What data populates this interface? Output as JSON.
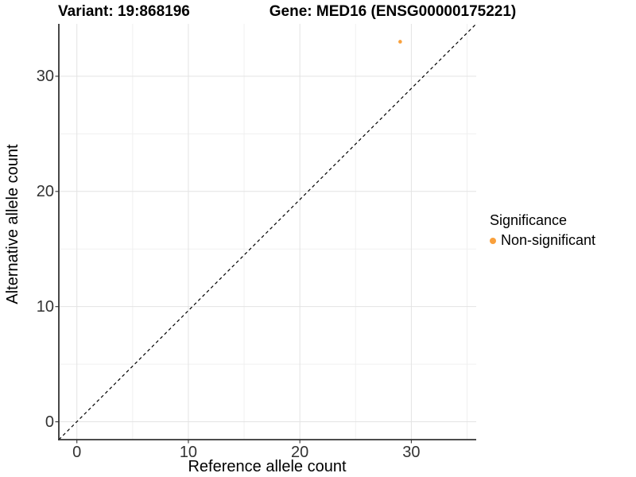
{
  "chart_data": {
    "type": "scatter",
    "title_left": "Variant: 19:868196",
    "title_right": "Gene: MED16 (ENSG00000175221)",
    "xlabel": "Reference allele count",
    "ylabel": "Alternative allele count",
    "xlim": [
      -1.62,
      35.82
    ],
    "ylim": [
      -1.55,
      34.55
    ],
    "x_ticks": [
      0,
      10,
      20,
      30
    ],
    "y_ticks": [
      0,
      10,
      20,
      30
    ],
    "x_minor_ticks": [
      5,
      15,
      25,
      35
    ],
    "y_minor_ticks": [
      5,
      15,
      25
    ],
    "grid": true,
    "series": [
      {
        "name": "Non-significant",
        "color": "#F9A03C",
        "points": [
          {
            "x": 29,
            "y": 33
          }
        ]
      }
    ],
    "reference_line": {
      "type": "identity",
      "style": "dashed",
      "color": "#000000"
    },
    "legend": {
      "title": "Significance",
      "position": "right",
      "entries": [
        {
          "label": "Non-significant",
          "color": "#F9A03C"
        }
      ]
    }
  },
  "colors": {
    "background": "#FFFFFF",
    "grid_major": "#E3E3E3",
    "grid_minor": "#F0F0F0",
    "axis_line": "#333333",
    "tick_mark": "#333333",
    "tick_label": "#323232",
    "text": "#000000"
  }
}
